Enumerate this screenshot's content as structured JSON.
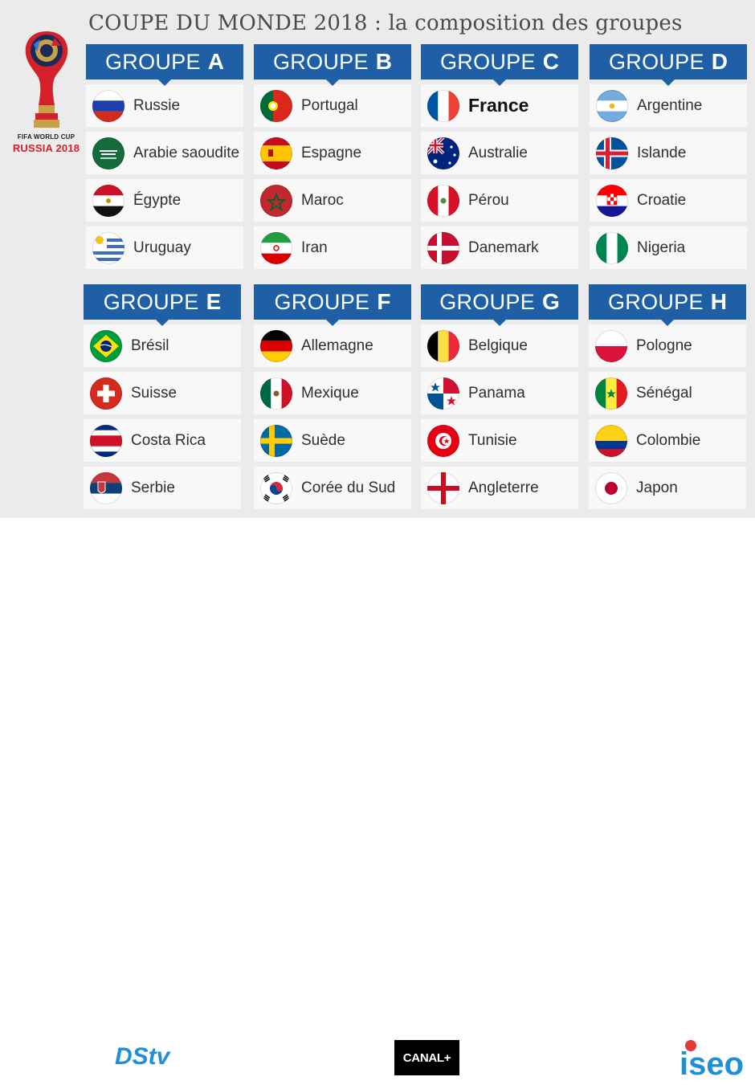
{
  "title": "COUPE DU MONDE 2018 : la composition des groupes",
  "logo": {
    "line1": "FIFA WORLD CUP",
    "line2": "RUSSIA 2018"
  },
  "group_word": "GROUPE",
  "groups": [
    {
      "letter": "A",
      "teams": [
        {
          "name": "Russie",
          "flag": "russia"
        },
        {
          "name": "Arabie saoudite",
          "flag": "saudi-arabia"
        },
        {
          "name": "Égypte",
          "flag": "egypt"
        },
        {
          "name": "Uruguay",
          "flag": "uruguay"
        }
      ]
    },
    {
      "letter": "B",
      "teams": [
        {
          "name": "Portugal",
          "flag": "portugal"
        },
        {
          "name": "Espagne",
          "flag": "spain"
        },
        {
          "name": "Maroc",
          "flag": "morocco"
        },
        {
          "name": "Iran",
          "flag": "iran"
        }
      ]
    },
    {
      "letter": "C",
      "teams": [
        {
          "name": "France",
          "flag": "france",
          "bold": true
        },
        {
          "name": "Australie",
          "flag": "australia"
        },
        {
          "name": "Pérou",
          "flag": "peru"
        },
        {
          "name": "Danemark",
          "flag": "denmark"
        }
      ]
    },
    {
      "letter": "D",
      "teams": [
        {
          "name": "Argentine",
          "flag": "argentina"
        },
        {
          "name": "Islande",
          "flag": "iceland"
        },
        {
          "name": "Croatie",
          "flag": "croatia"
        },
        {
          "name": "Nigeria",
          "flag": "nigeria"
        }
      ]
    },
    {
      "letter": "E",
      "teams": [
        {
          "name": "Brésil",
          "flag": "brazil"
        },
        {
          "name": "Suisse",
          "flag": "switzerland"
        },
        {
          "name": "Costa Rica",
          "flag": "costa-rica"
        },
        {
          "name": "Serbie",
          "flag": "serbia"
        }
      ]
    },
    {
      "letter": "F",
      "teams": [
        {
          "name": "Allemagne",
          "flag": "germany"
        },
        {
          "name": "Mexique",
          "flag": "mexico"
        },
        {
          "name": "Suède",
          "flag": "sweden"
        },
        {
          "name": "Corée du Sud",
          "flag": "south-korea"
        }
      ]
    },
    {
      "letter": "G",
      "teams": [
        {
          "name": "Belgique",
          "flag": "belgium"
        },
        {
          "name": "Panama",
          "flag": "panama"
        },
        {
          "name": "Tunisie",
          "flag": "tunisia"
        },
        {
          "name": "Angleterre",
          "flag": "england"
        }
      ]
    },
    {
      "letter": "H",
      "teams": [
        {
          "name": "Pologne",
          "flag": "poland"
        },
        {
          "name": "Sénégal",
          "flag": "senegal"
        },
        {
          "name": "Colombie",
          "flag": "colombia"
        },
        {
          "name": "Japon",
          "flag": "japan"
        }
      ]
    }
  ],
  "footer": {
    "dstv": "DStv",
    "canal": "CANAL+",
    "iseo": "iseo"
  },
  "colors": {
    "header_blue": "#1e5fa5",
    "background": "#ebebeb",
    "card": "#f8f8f8"
  }
}
